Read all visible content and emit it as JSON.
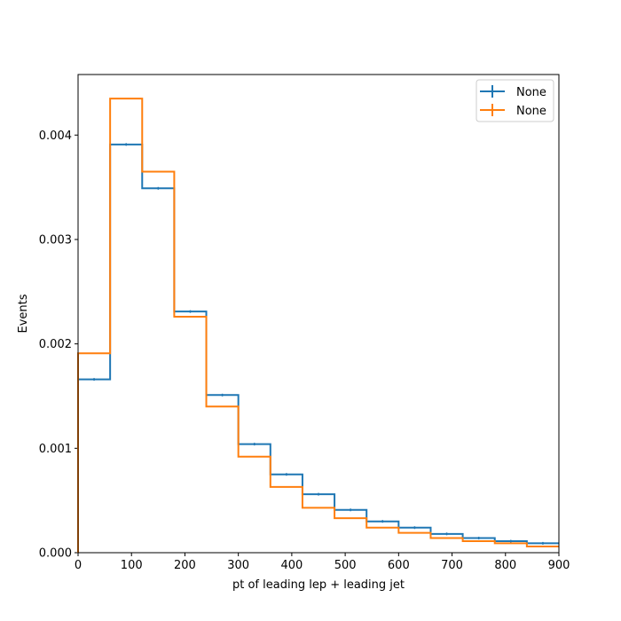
{
  "chart_data": {
    "type": "histogram-step",
    "xlabel": "pt of leading lep + leading jet",
    "ylabel": "Events",
    "xlim": [
      0,
      900
    ],
    "ylim": [
      0,
      0.00458
    ],
    "x_ticks": [
      "0",
      "100",
      "200",
      "300",
      "400",
      "500",
      "600",
      "700",
      "800",
      "900"
    ],
    "y_ticks": [
      "0.000",
      "0.001",
      "0.002",
      "0.003",
      "0.004"
    ],
    "bin_edges": [
      0,
      60,
      120,
      180,
      240,
      300,
      360,
      420,
      480,
      540,
      600,
      660,
      720,
      780,
      840,
      900
    ],
    "grid": false,
    "legend_position": "top-right",
    "series": [
      {
        "name": "None",
        "color": "#1f77b4",
        "error_bars": true,
        "values": [
          0.00166,
          0.00391,
          0.00349,
          0.00231,
          0.00151,
          0.00104,
          0.00075,
          0.00056,
          0.00041,
          0.0003,
          0.00024,
          0.00018,
          0.00014,
          0.00011,
          9e-05
        ]
      },
      {
        "name": "None",
        "color": "#ff7f0e",
        "error_bars": false,
        "values": [
          0.00191,
          0.00435,
          0.00365,
          0.00226,
          0.0014,
          0.00092,
          0.00063,
          0.00043,
          0.00033,
          0.00024,
          0.00019,
          0.00014,
          0.00011,
          9e-05,
          6e-05
        ]
      }
    ]
  }
}
